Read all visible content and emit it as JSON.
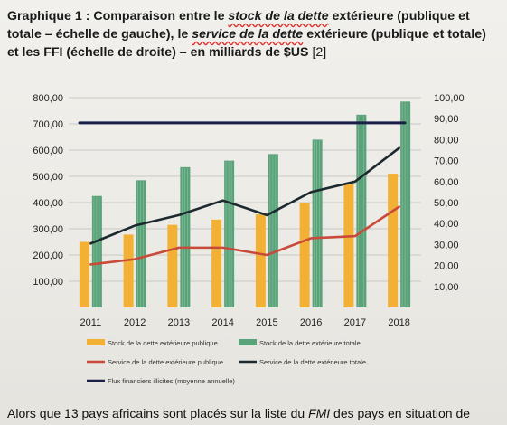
{
  "title": {
    "prefix": "Graphique 1 : Comparaison entre le ",
    "stock": "stock de la dette",
    "mid1": " extérieure (publique et totale – échelle de gauche), le ",
    "service": "service de la dette",
    "mid2": " extérieure (publique et totale) et les FFI (échelle de droite) – en milliards de $US",
    "ref": " [2]"
  },
  "body_text": {
    "pre": "Alors que 13 pays africains sont placés sur la liste du ",
    "fmi": "FMI",
    "post": " des pays en situation de"
  },
  "chart_data": {
    "type": "bar",
    "categories": [
      "2011",
      "2012",
      "2013",
      "2014",
      "2015",
      "2016",
      "2017",
      "2018"
    ],
    "ylim_left": [
      0,
      800
    ],
    "ylim_right": [
      0,
      100
    ],
    "left_ticks": [
      "800,00",
      "700,00",
      "600,00",
      "500,00",
      "400,00",
      "300,00",
      "200,00",
      "100,00"
    ],
    "right_ticks": [
      "100,00",
      "90,00",
      "80,00",
      "70,00",
      "60,00",
      "50,00",
      "40,00",
      "30,00",
      "20,00",
      "10,00"
    ],
    "bars": [
      {
        "name": "Stock de la dette extérieure publique",
        "color": "#f2b134",
        "values": [
          250,
          278,
          315,
          335,
          355,
          400,
          470,
          510
        ]
      },
      {
        "name": "Stock de la dette extérieure totale",
        "color": "#5aa27a",
        "values": [
          425,
          485,
          535,
          560,
          585,
          640,
          735,
          785
        ]
      }
    ],
    "lines": [
      {
        "name": "Service de la dette extérieure publique",
        "color": "#c84a3a",
        "axis": "right",
        "values": [
          20.5,
          23,
          28.5,
          28.5,
          25,
          33,
          34,
          48
        ]
      },
      {
        "name": "Service de la dette extérieure totale",
        "color": "#1c2a30",
        "axis": "right",
        "values": [
          30.5,
          39,
          44,
          51,
          44,
          55,
          60,
          76
        ]
      },
      {
        "name": "Flux financiers illicites (moyenne annuelle)",
        "color": "#1a1f4a",
        "axis": "right",
        "values": [
          88,
          88,
          88,
          88,
          88,
          88,
          88,
          88
        ]
      }
    ],
    "legend_position": "bottom",
    "grid": true
  }
}
